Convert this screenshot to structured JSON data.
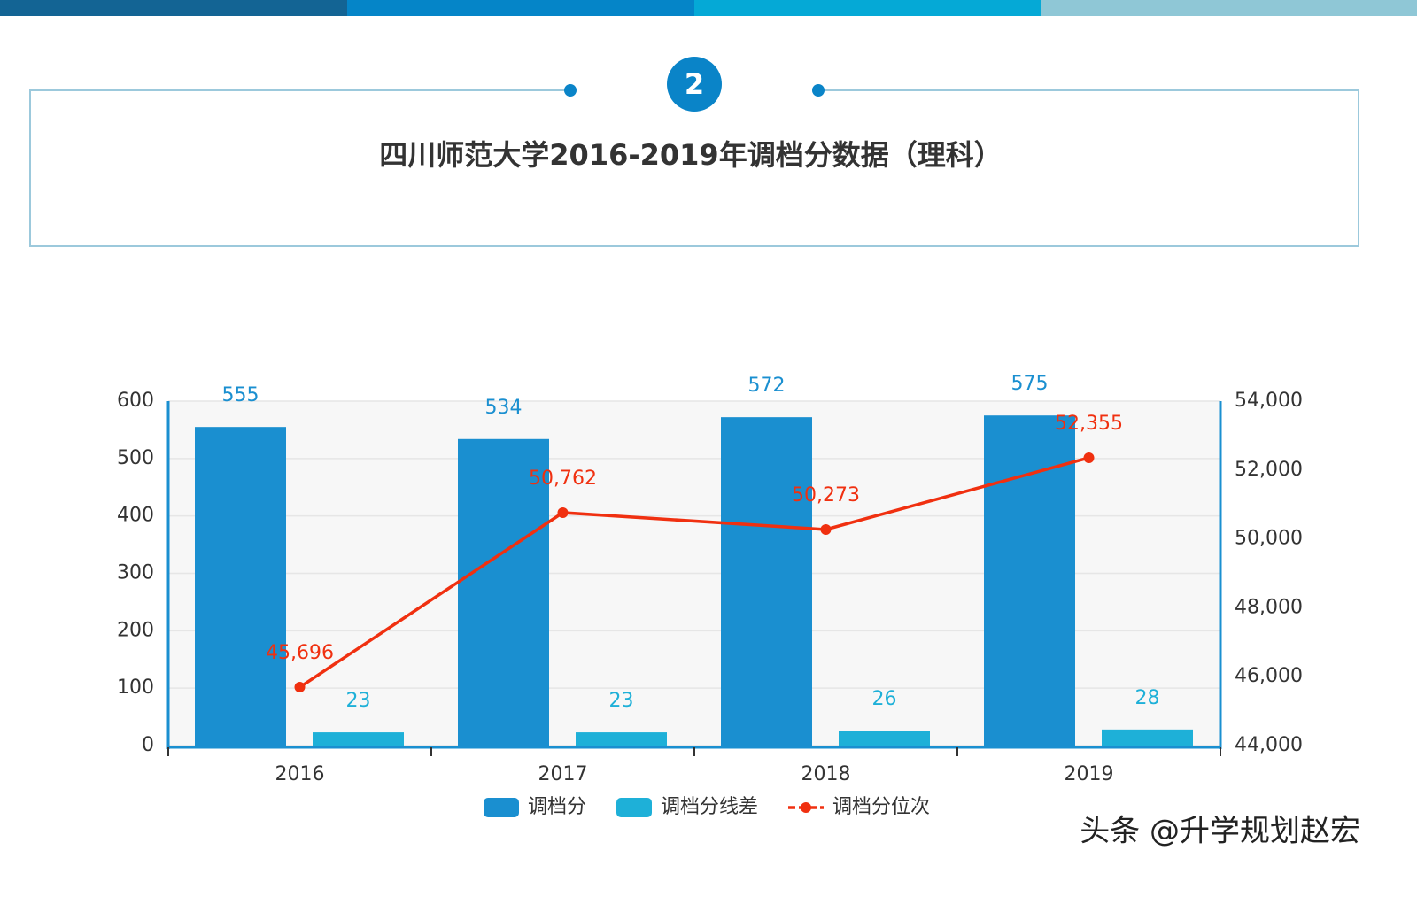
{
  "header": {
    "badge": "2"
  },
  "chart_data": {
    "type": "bar-line",
    "title": "四川师范大学2016-2019年调档分数据（理科）",
    "categories": [
      "2016",
      "2017",
      "2018",
      "2019"
    ],
    "series": [
      {
        "name": "调档分",
        "type": "bar",
        "color": "#1a8fd0",
        "values": [
          555,
          534,
          572,
          575
        ]
      },
      {
        "name": "调档分线差",
        "type": "bar",
        "color": "#1eb0d8",
        "values": [
          23,
          23,
          26,
          28
        ]
      },
      {
        "name": "调档分位次",
        "type": "line",
        "axis": "y2",
        "color": "#f03010",
        "values": [
          45696,
          50762,
          50273,
          52355
        ],
        "value_labels": [
          "45,696",
          "50,762",
          "50,273",
          "52,355"
        ]
      }
    ],
    "ylim": [
      0,
      600
    ],
    "yticks": [
      0,
      100,
      200,
      300,
      400,
      500,
      600
    ],
    "y2lim": [
      44000,
      54000
    ],
    "y2ticks": [
      {
        "value": 44000,
        "label": "44,000"
      },
      {
        "value": 46000,
        "label": "46,000"
      },
      {
        "value": 48000,
        "label": "48,000"
      },
      {
        "value": 50000,
        "label": "50,000"
      },
      {
        "value": 52000,
        "label": "52,000"
      },
      {
        "value": 54000,
        "label": "54,000"
      }
    ],
    "grid": true,
    "legend": "bottom"
  },
  "watermark": "头条 @升学规划赵宏"
}
